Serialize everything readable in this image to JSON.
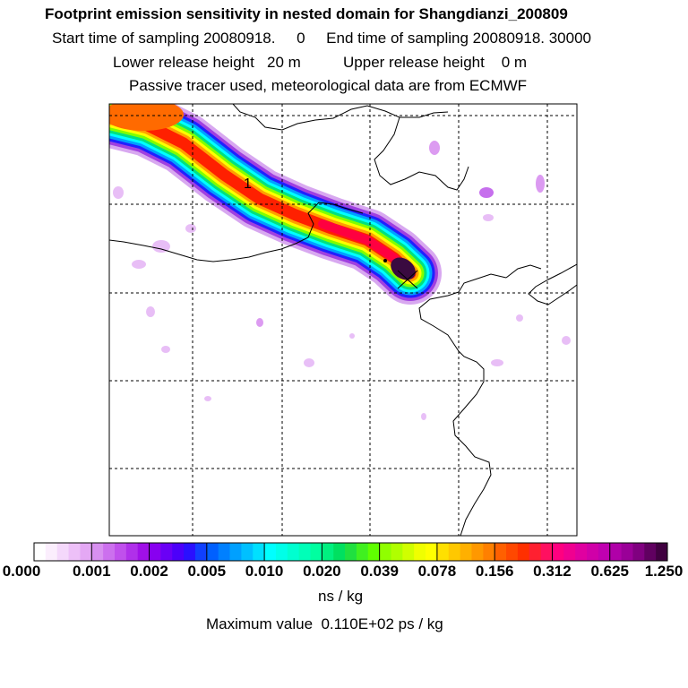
{
  "header": {
    "title": "Footprint emission sensitivity in nested domain for Shangdianzi_200809",
    "sampling_line": "Start time of sampling 20080918.     0     End time of sampling 20080918. 30000",
    "release_line": "Lower release height   20 m          Upper release height    0 m",
    "tracer_line": "Passive tracer used, meteorological data are from ECMWF"
  },
  "map": {
    "contour_label": "1",
    "plume_colors": [
      "#d8a8f0",
      "#a040e0",
      "#2020ff",
      "#00a0ff",
      "#00ffff",
      "#00e080",
      "#80ff00",
      "#ffff00",
      "#ffa000",
      "#ff2000"
    ],
    "core_color": "#3a0a40"
  },
  "colorbar": {
    "labels": [
      "0.000",
      "0.001",
      "0.002",
      "0.005",
      "0.010",
      "0.020",
      "0.039",
      "0.078",
      "0.156",
      "0.312",
      "0.625",
      "1.250"
    ],
    "segment_colors": [
      [
        "#ffffff",
        "#fbeefd",
        "#f4d8fb",
        "#edc0f8",
        "#e4a8f4"
      ],
      [
        "#d890f0",
        "#cc70ee",
        "#c050ec",
        "#b030ea",
        "#a010e8"
      ],
      [
        "#8800f0",
        "#6a00f6",
        "#4c00fa",
        "#2a10ff",
        "#1040ff"
      ],
      [
        "#0060ff",
        "#0080ff",
        "#00a0ff",
        "#00c0ff",
        "#00e0ff"
      ],
      [
        "#00ffff",
        "#00ffe8",
        "#00ffd0",
        "#00ffb8",
        "#00ffa0"
      ],
      [
        "#00f080",
        "#00e060",
        "#20e040",
        "#40f020",
        "#60ff00"
      ],
      [
        "#90ff00",
        "#b0ff00",
        "#d0ff00",
        "#f0ff00",
        "#ffff00"
      ],
      [
        "#ffe000",
        "#ffc800",
        "#ffb000",
        "#ff9800",
        "#ff8000"
      ],
      [
        "#ff6000",
        "#ff4800",
        "#ff3000",
        "#ff2030",
        "#ff1060"
      ],
      [
        "#ff0080",
        "#f00090",
        "#e000a0",
        "#d000a8",
        "#c000b0"
      ],
      [
        "#b000a8",
        "#9a0098",
        "#800080",
        "#600060",
        "#400040"
      ]
    ],
    "units": "ns / kg",
    "max_value": "Maximum value  0.110E+02 ps / kg"
  }
}
